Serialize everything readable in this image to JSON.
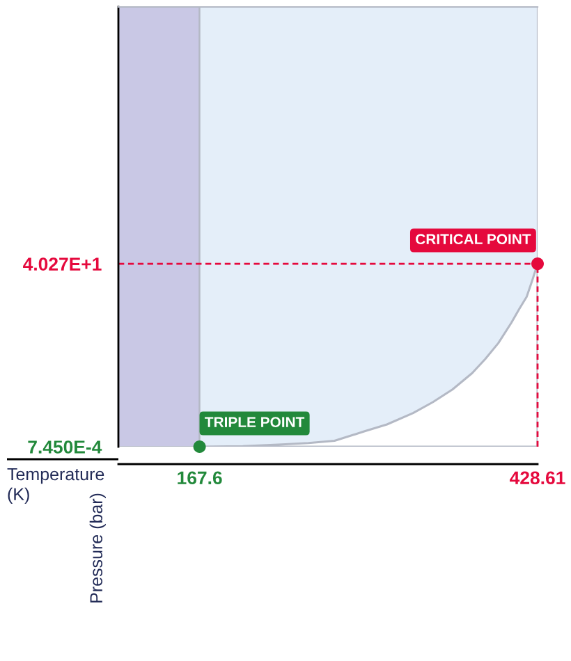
{
  "chart_data": {
    "type": "area",
    "xlabel": "Temperature (K)",
    "ylabel": "Pressure (bar)",
    "xlim": [
      104.9,
      428.61
    ],
    "ylim": [
      0,
      96.8
    ],
    "xticks": [
      167.6,
      428.61
    ],
    "yticks": [
      {
        "value": 0.000745,
        "label": "7.450E-4"
      },
      {
        "value": 40.27,
        "label": "4.027E+1"
      }
    ],
    "bands": [
      {
        "axis": "x",
        "from": 104.9,
        "to": 167.6,
        "color": "#c9c8e5"
      },
      {
        "axis": "x",
        "from": 167.6,
        "to": 428.61,
        "color": "#e4eef9"
      }
    ],
    "ref_lines": [
      {
        "axis": "y",
        "value": 40.27,
        "color": "#e5093d",
        "line_style": "dashed"
      }
    ],
    "series": [
      {
        "color": "#ffffff",
        "x": [
          167.6,
          201.0,
          231.3,
          251.6,
          271.8,
          295.1,
          312.3,
          332.5,
          347.7,
          362.9,
          378.1,
          388.2,
          398.3,
          408.4,
          414.4,
          420.2,
          424.6,
          428.61
        ],
        "values": [
          0,
          0.1,
          0.5,
          0.8,
          1.3,
          3.4,
          4.9,
          7.4,
          9.8,
          12.6,
          16.2,
          19.3,
          22.8,
          27.3,
          30.3,
          33.0,
          36.7,
          40.27
        ]
      },
      {
        "type": "line",
        "color": "#e5093d",
        "line_style": "dashed",
        "x": [
          428.61,
          428.61
        ],
        "values": [
          0,
          40.27
        ]
      },
      {
        "type": "scatter",
        "color": "#22893b",
        "marker": "circle",
        "x": [
          167.6
        ],
        "values": [
          0.000745
        ]
      },
      {
        "type": "scatter",
        "color": "#e5093d",
        "marker": "circle",
        "x": [
          428.61
        ],
        "values": [
          40.27
        ]
      }
    ],
    "annotations": [
      {
        "text": "TRIPLE POINT",
        "x": 167.6,
        "y": 0.000745
      },
      {
        "text": "CRITICAL POINT",
        "x": 428.61,
        "y": 40.27
      }
    ]
  }
}
